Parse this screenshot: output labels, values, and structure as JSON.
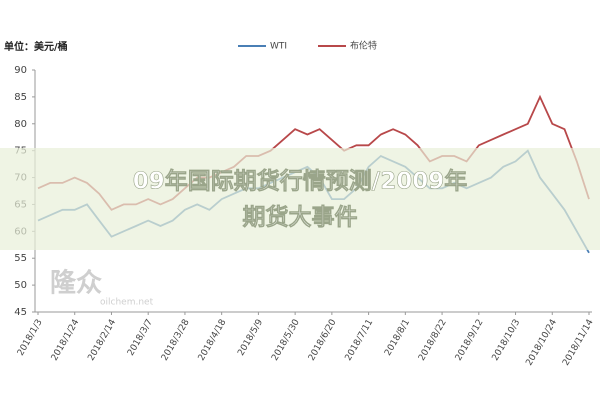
{
  "chart_data": {
    "type": "line",
    "y_label": "单位：美元/桶",
    "categories": [
      "2018/1/3",
      null,
      null,
      "2018/1/24",
      null,
      null,
      "2018/2/14",
      null,
      null,
      "2018/3/7",
      null,
      null,
      "2018/3/28",
      null,
      null,
      "2018/4/18",
      null,
      null,
      "2018/5/9",
      null,
      null,
      "2018/5/30",
      null,
      null,
      "2018/6/20",
      null,
      null,
      "2018/7/11",
      null,
      null,
      "2018/8/1",
      null,
      null,
      "2018/8/22",
      null,
      null,
      "2018/9/12",
      null,
      null,
      "2018/10/3",
      null,
      null,
      "2018/10/24",
      null,
      null,
      "2018/11/14"
    ],
    "series": [
      {
        "name": "WTI",
        "color": "#4a7fb5",
        "values": [
          62,
          63,
          64,
          64,
          65,
          62,
          59,
          60,
          61,
          62,
          61,
          62,
          64,
          65,
          64,
          66,
          67,
          68,
          68,
          69,
          70,
          71,
          72,
          70,
          66,
          66,
          68,
          72,
          74,
          73,
          72,
          70,
          68,
          68,
          69,
          68,
          69,
          70,
          72,
          73,
          75,
          70,
          67,
          64,
          60,
          56
        ]
      },
      {
        "name": "布伦特",
        "color": "#b8484a",
        "values": [
          68,
          69,
          69,
          70,
          69,
          67,
          64,
          65,
          65,
          66,
          65,
          66,
          68,
          70,
          70,
          71,
          72,
          74,
          74,
          75,
          77,
          79,
          78,
          79,
          77,
          75,
          76,
          76,
          78,
          79,
          78,
          76,
          73,
          74,
          74,
          73,
          76,
          77,
          78,
          79,
          80,
          85,
          80,
          79,
          73,
          66
        ]
      }
    ],
    "ylim": [
      45,
      90
    ],
    "yticks": [
      45,
      50,
      55,
      60,
      65,
      70,
      75,
      80,
      85,
      90
    ],
    "grid": false,
    "watermark": [
      "隆众",
      "oilchem.net"
    ],
    "overlay_text": [
      "09年国际期货行情预测/2009年",
      "期货大事件"
    ]
  }
}
